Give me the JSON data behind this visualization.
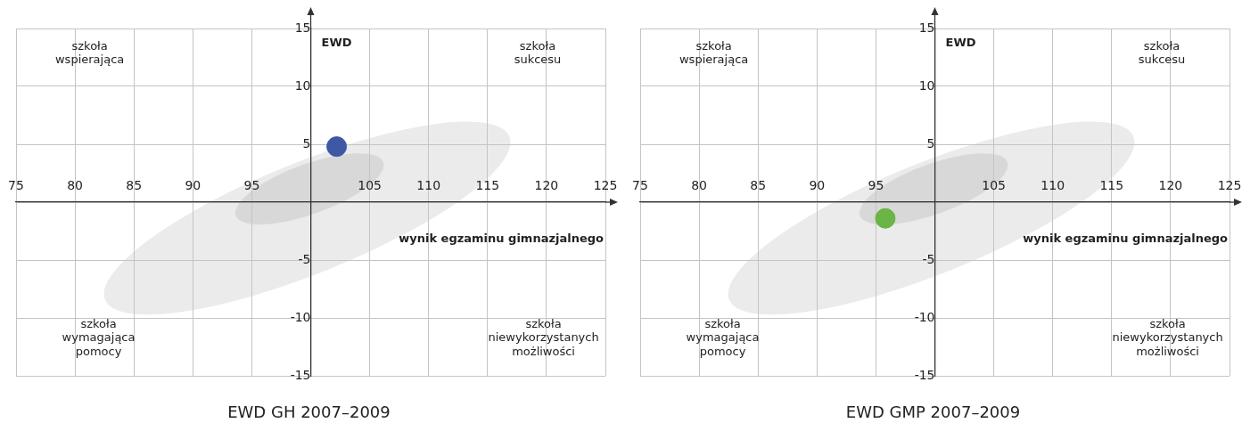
{
  "chart_data": [
    {
      "type": "scatter",
      "title": "EWD GH 2007–2009",
      "xlabel": "wynik egzaminu gimnazjalnego",
      "ylabel": "EWD",
      "annotations": [
        "szkoła wspierająca",
        "szkoła sukcesu",
        "szkoła wymagająca pomocy",
        "szkoła niewykorzystanych możliwości"
      ],
      "series": [
        {
          "color": "#3f58a6",
          "x": [
            102.2
          ],
          "values": [
            4.8
          ]
        }
      ],
      "xlim": [
        75,
        125
      ],
      "ylim": [
        -15,
        15
      ],
      "xticks": [
        75,
        80,
        85,
        90,
        95,
        {
          "value": 100,
          "label": null
        },
        105,
        110,
        115,
        120,
        125
      ],
      "yticks": [
        -15,
        -10,
        -5,
        {
          "value": 0,
          "label": null
        },
        5,
        10,
        15
      ],
      "grid": true,
      "marker": "circle"
    },
    {
      "type": "scatter",
      "title": "EWD GMP 2007–2009",
      "xlabel": "wynik egzaminu gimnazjalnego",
      "ylabel": "EWD",
      "annotations": [
        "szkoła wspierająca",
        "szkoła sukcesu",
        "szkoła wymagająca pomocy",
        "szkoła niewykorzystanych możliwości"
      ],
      "series": [
        {
          "color": "#6ab545",
          "x": [
            95.8
          ],
          "values": [
            -1.4
          ]
        }
      ],
      "xlim": [
        75,
        125
      ],
      "ylim": [
        -15,
        15
      ],
      "xticks": [
        75,
        80,
        85,
        90,
        95,
        {
          "value": 100,
          "label": null
        },
        105,
        110,
        115,
        120,
        125
      ],
      "yticks": [
        -15,
        -10,
        -5,
        {
          "value": 0,
          "label": null
        },
        5,
        10,
        15
      ],
      "grid": true,
      "marker": "circle"
    }
  ]
}
